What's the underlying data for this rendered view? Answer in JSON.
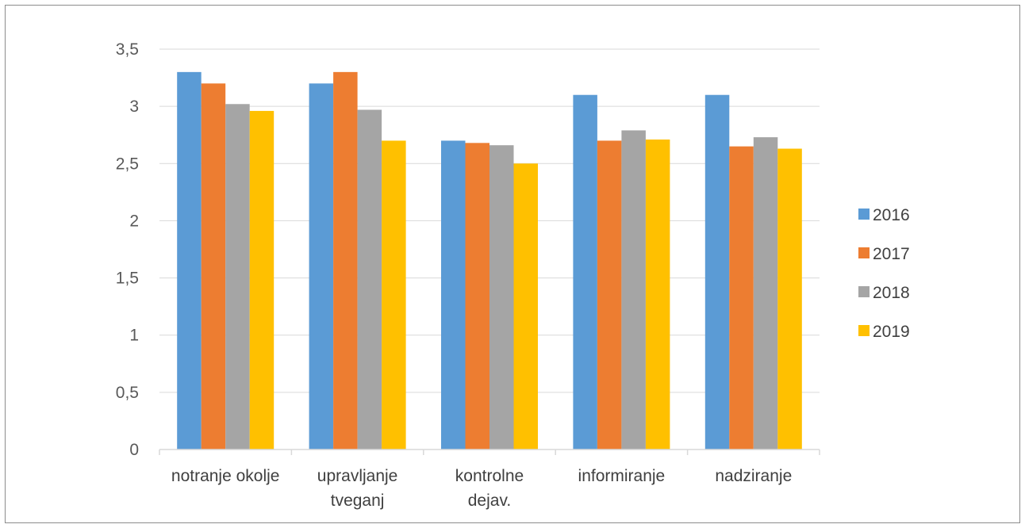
{
  "chart_data": {
    "type": "bar",
    "title": "",
    "xlabel": "",
    "ylabel": "",
    "categories": [
      [
        "notranje okolje"
      ],
      [
        "upravljanje",
        "tveganj"
      ],
      [
        "kontrolne",
        "dejav."
      ],
      [
        "informiranje"
      ],
      [
        "nadziranje"
      ]
    ],
    "series": [
      {
        "name": "2016",
        "color": "#5b9bd5",
        "values": [
          3.3,
          3.2,
          2.7,
          3.1,
          3.1
        ]
      },
      {
        "name": "2017",
        "color": "#ed7d31",
        "values": [
          3.2,
          3.3,
          2.68,
          2.7,
          2.65
        ]
      },
      {
        "name": "2018",
        "color": "#a5a5a5",
        "values": [
          3.02,
          2.97,
          2.66,
          2.79,
          2.73
        ]
      },
      {
        "name": "2019",
        "color": "#ffc000",
        "values": [
          2.96,
          2.7,
          2.5,
          2.71,
          2.63
        ]
      }
    ],
    "ylim": [
      0,
      3.5
    ],
    "yticks": [
      "0",
      "0,5",
      "1",
      "1,5",
      "2",
      "2,5",
      "3",
      "3,5"
    ],
    "grid": true,
    "legend_position": "right"
  }
}
